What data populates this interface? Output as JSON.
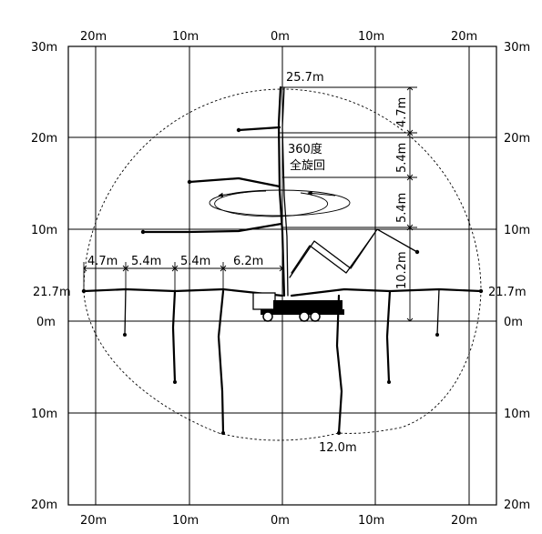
{
  "axis": {
    "top_labels": [
      "20m",
      "10m",
      "0m",
      "10m",
      "20m"
    ],
    "bottom_labels": [
      "20m",
      "10m",
      "0m",
      "10m",
      "20m"
    ],
    "left_labels": [
      "30m",
      "20m",
      "10m",
      "21.7m",
      "0m",
      "10m",
      "20m"
    ],
    "right_labels": [
      "30m",
      "20m",
      "10m",
      "21.7m",
      "0m",
      "10m",
      "20m"
    ]
  },
  "dimensions": {
    "max_height": "25.7m",
    "vertical_segments": [
      "4.7m",
      "5.4m",
      "5.4m",
      "10.2m"
    ],
    "horizontal_segments": [
      "4.7m",
      "5.4m",
      "5.4m",
      "6.2m"
    ],
    "max_depth": "12.0m"
  },
  "rotation": {
    "line1": "360度",
    "line2": "全旋回"
  }
}
